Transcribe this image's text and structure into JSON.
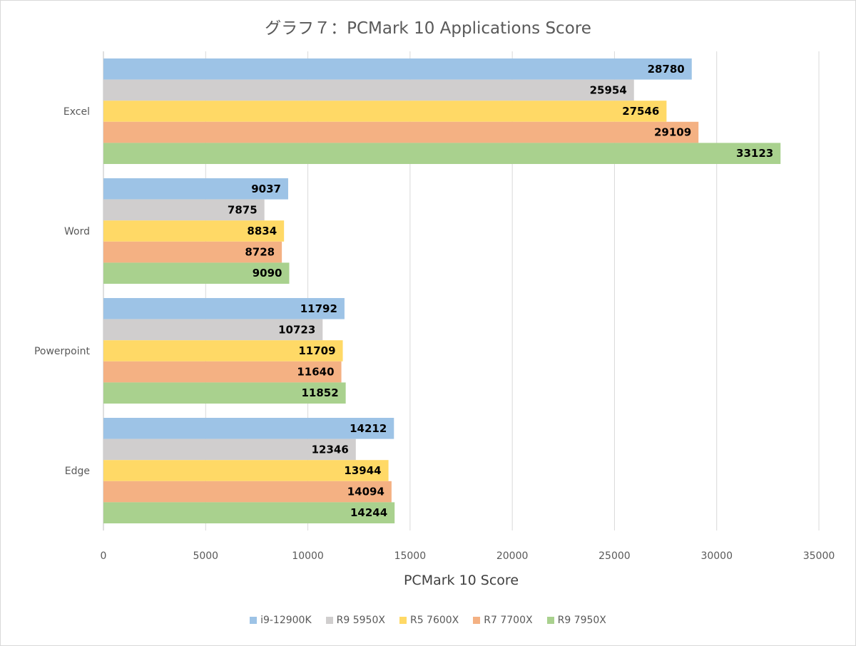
{
  "chart_data": {
    "type": "bar",
    "orientation": "horizontal",
    "title": "グラフ７：PCMark 10 Applications Score",
    "xlabel": "PCMark 10 Score",
    "ylabel": "",
    "categories": [
      "Excel",
      "Word",
      "Powerpoint",
      "Edge"
    ],
    "xlim": [
      0,
      35000
    ],
    "x_ticks": [
      "0",
      "5000",
      "10000",
      "15000",
      "20000",
      "25000",
      "30000",
      "35000"
    ],
    "grid": "vertical",
    "legend_position": "bottom",
    "series": [
      {
        "name": "i9-12900K",
        "color": "#9dc3e6",
        "values": [
          28780,
          9037,
          11792,
          14212
        ]
      },
      {
        "name": "R9 5950X",
        "color": "#d0cece",
        "values": [
          25954,
          7875,
          10723,
          12346
        ]
      },
      {
        "name": "R5 7600X",
        "color": "#ffd966",
        "values": [
          27546,
          8834,
          11709,
          13944
        ]
      },
      {
        "name": "R7 7700X",
        "color": "#f4b183",
        "values": [
          29109,
          8728,
          11640,
          14094
        ]
      },
      {
        "name": "R9 7950X",
        "color": "#a9d18e",
        "values": [
          33123,
          9090,
          11852,
          14244
        ]
      }
    ]
  }
}
